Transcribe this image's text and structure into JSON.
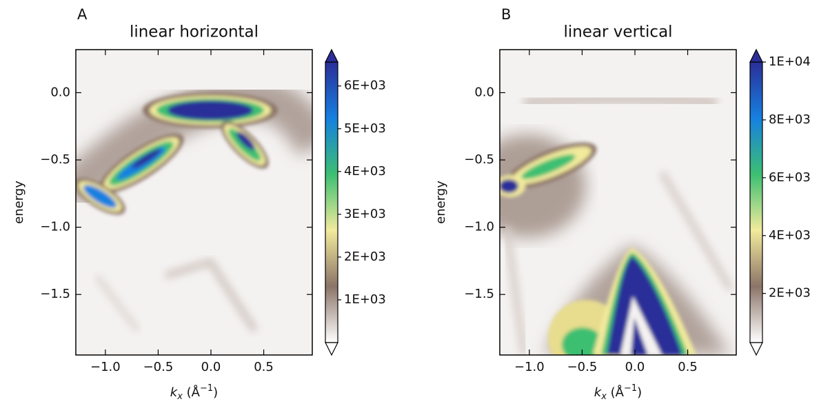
{
  "chart_data": [
    {
      "type": "heatmap",
      "panel_label": "A",
      "title": "linear horizontal",
      "xlabel": [
        "k",
        "x",
        " (Å",
        "−1",
        ")"
      ],
      "ylabel": "energy",
      "xlim": [
        -1.28,
        0.96
      ],
      "ylim": [
        -1.95,
        0.32
      ],
      "xticks": [
        {
          "value": -1.0,
          "label": "−1.0"
        },
        {
          "value": -0.5,
          "label": "−0.5"
        },
        {
          "value": 0.0,
          "label": "0.0"
        },
        0.5
      ],
      "yticks": [
        {
          "value": 0.0,
          "label": "0.0"
        },
        {
          "value": -0.5,
          "label": "−0.5"
        },
        {
          "value": -1.0,
          "label": "−1.0"
        },
        {
          "value": -1.5,
          "label": "−1.5"
        }
      ],
      "clim": [
        0,
        6560
      ],
      "cticks": [
        {
          "value": 1000,
          "label": "1E+03"
        },
        {
          "value": 2000,
          "label": "2E+03"
        },
        {
          "value": 3000,
          "label": "3E+03"
        },
        {
          "value": 4000,
          "label": "4E+03"
        },
        {
          "value": 5000,
          "label": "5E+03"
        },
        {
          "value": 6000,
          "label": "6E+03"
        }
      ],
      "colormap": [
        "#ffffff",
        "#8c7468",
        "#f2ea9c",
        "#3cbf72",
        "#1680e0",
        "#2b2e98"
      ]
    },
    {
      "type": "heatmap",
      "panel_label": "B",
      "title": "linear vertical",
      "xlabel": [
        "k",
        "x",
        " (Å",
        "−1",
        ")"
      ],
      "ylabel": "energy",
      "xlim": [
        -1.28,
        0.96
      ],
      "ylim": [
        -1.95,
        0.32
      ],
      "xticks": [
        {
          "value": -1.0,
          "label": "−1.0"
        },
        {
          "value": -0.5,
          "label": "−0.5"
        },
        {
          "value": 0.0,
          "label": "0.0"
        },
        0.5
      ],
      "yticks": [
        {
          "value": 0.0,
          "label": "0.0"
        },
        {
          "value": -0.5,
          "label": "−0.5"
        },
        {
          "value": -1.0,
          "label": "−1.0"
        },
        {
          "value": -1.5,
          "label": "−1.5"
        }
      ],
      "clim": [
        300,
        10000
      ],
      "cticks": [
        {
          "value": 2000,
          "label": "2E+03"
        },
        {
          "value": 4000,
          "label": "4E+03"
        },
        {
          "value": 6000,
          "label": "6E+03"
        },
        {
          "value": 8000,
          "label": "8E+03"
        },
        {
          "value": 10000,
          "label": "1E+04"
        }
      ],
      "colormap": [
        "#ffffff",
        "#8c7468",
        "#f2ea9c",
        "#3cbf72",
        "#1680e0",
        "#2b2e98"
      ]
    }
  ]
}
